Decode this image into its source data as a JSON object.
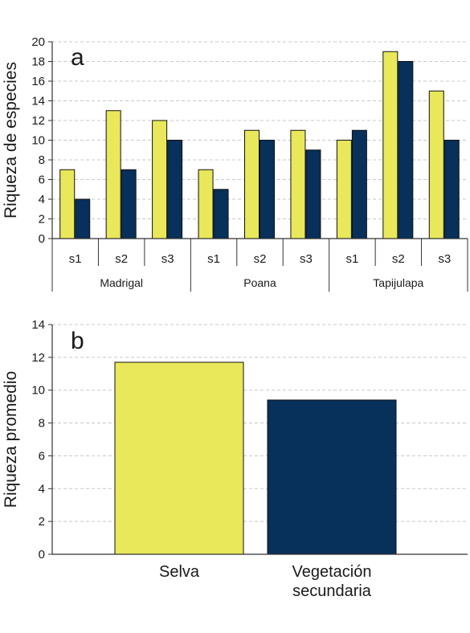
{
  "colors": {
    "selva": "#e8e85a",
    "secundaria": "#07305a",
    "axis": "#333333",
    "grid": "#c8c8c8"
  },
  "chart_data": [
    {
      "type": "bar",
      "panel_label": "a",
      "title": "",
      "ylabel": "Riqueza de especies",
      "xlabel": "",
      "ylim": [
        0,
        20
      ],
      "yticks": [
        0,
        2,
        4,
        6,
        8,
        10,
        12,
        14,
        16,
        18,
        20
      ],
      "grid": "horizontal-dashed",
      "legend": "none",
      "groups": [
        "Madrigal",
        "Poana",
        "Tapijulapa"
      ],
      "categories": [
        "s1",
        "s2",
        "s3",
        "s1",
        "s2",
        "s3",
        "s1",
        "s2",
        "s3"
      ],
      "series": [
        {
          "color": "#e8e85a",
          "values": [
            7,
            13,
            12,
            7,
            11,
            11,
            10,
            19,
            15
          ]
        },
        {
          "color": "#07305a",
          "values": [
            4,
            7,
            10,
            5,
            10,
            9,
            11,
            18,
            10
          ]
        }
      ]
    },
    {
      "type": "bar",
      "panel_label": "b",
      "title": "",
      "ylabel": "Riqueza promedio",
      "xlabel": "",
      "ylim": [
        0,
        14
      ],
      "yticks": [
        0,
        2,
        4,
        6,
        8,
        10,
        12,
        14
      ],
      "grid": "horizontal-dashed",
      "legend": "none",
      "categories": [
        {
          "line1": "Selva",
          "line2": ""
        },
        {
          "line1": "Vegetación",
          "line2": "secundaria"
        }
      ],
      "values": [
        11.7,
        9.4
      ],
      "colors": [
        "#e8e85a",
        "#07305a"
      ]
    }
  ]
}
